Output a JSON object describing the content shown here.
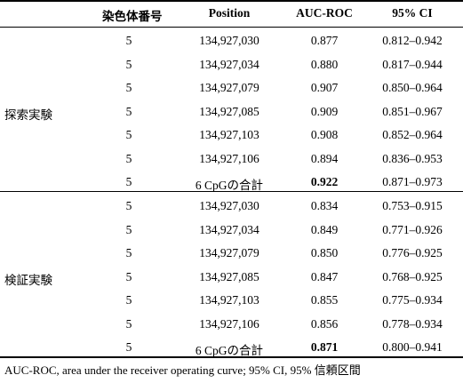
{
  "table": {
    "headers": {
      "chromosome": "染色体番号",
      "position": "Position",
      "auc": "AUC-ROC",
      "ci": "95% CI"
    },
    "groups": [
      {
        "label": "探索実験",
        "rows": [
          {
            "chr": "5",
            "pos": "134,927,030",
            "auc": "0.877",
            "ci": "0.812–0.942"
          },
          {
            "chr": "5",
            "pos": "134,927,034",
            "auc": "0.880",
            "ci": "0.817–0.944"
          },
          {
            "chr": "5",
            "pos": "134,927,079",
            "auc": "0.907",
            "ci": "0.850–0.964"
          },
          {
            "chr": "5",
            "pos": "134,927,085",
            "auc": "0.909",
            "ci": "0.851–0.967"
          },
          {
            "chr": "5",
            "pos": "134,927,103",
            "auc": "0.908",
            "ci": "0.852–0.964"
          },
          {
            "chr": "5",
            "pos": "134,927,106",
            "auc": "0.894",
            "ci": "0.836–0.953"
          },
          {
            "chr": "5",
            "pos": "6 CpGの合計",
            "auc": "0.922",
            "ci": "0.871–0.973",
            "bold_auc": true
          }
        ]
      },
      {
        "label": "検証実験",
        "rows": [
          {
            "chr": "5",
            "pos": "134,927,030",
            "auc": "0.834",
            "ci": "0.753–0.915"
          },
          {
            "chr": "5",
            "pos": "134,927,034",
            "auc": "0.849",
            "ci": "0.771–0.926"
          },
          {
            "chr": "5",
            "pos": "134,927,079",
            "auc": "0.850",
            "ci": "0.776–0.925"
          },
          {
            "chr": "5",
            "pos": "134,927,085",
            "auc": "0.847",
            "ci": "0.768–0.925"
          },
          {
            "chr": "5",
            "pos": "134,927,103",
            "auc": "0.855",
            "ci": "0.775–0.934"
          },
          {
            "chr": "5",
            "pos": "134,927,106",
            "auc": "0.856",
            "ci": "0.778–0.934"
          },
          {
            "chr": "5",
            "pos": "6 CpGの合計",
            "auc": "0.871",
            "ci": "0.800–0.941",
            "bold_auc": true
          }
        ]
      }
    ],
    "footnote": "AUC-ROC, area under the receiver operating curve; 95% CI, 95% 信頼区間"
  }
}
